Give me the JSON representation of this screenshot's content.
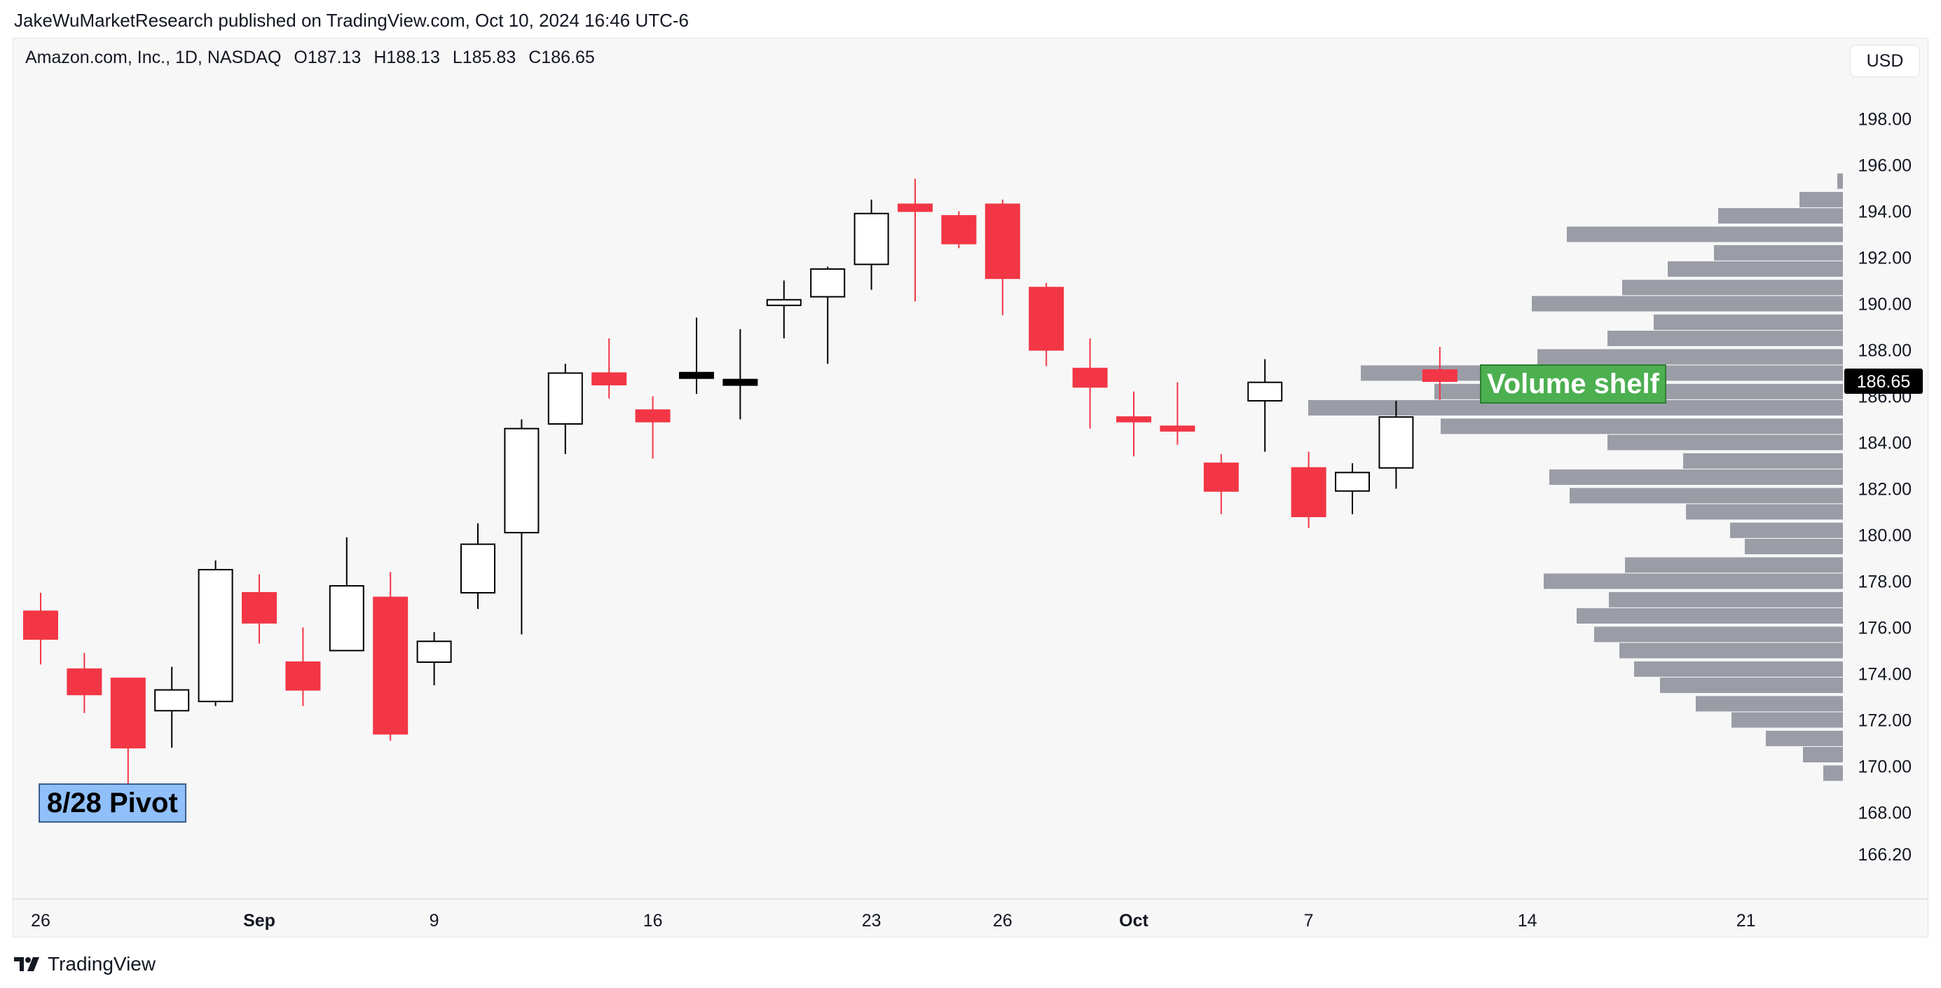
{
  "header": {
    "attribution": "JakeWuMarketResearch published on TradingView.com, Oct 10, 2024 16:46 UTC-6"
  },
  "legend": {
    "symbol": "Amazon.com, Inc., 1D, NASDAQ",
    "open": "O187.13",
    "high": "H188.13",
    "low": "L185.83",
    "close": "C186.65"
  },
  "currency": "USD",
  "footer": {
    "brand": "TradingView",
    "logo_icon": "tradingview-logo-icon"
  },
  "annotations": {
    "pivot": "8/28 Pivot",
    "volume_shelf": "Volume shelf"
  },
  "colors": {
    "down": "#f23645",
    "up_fill": "#ffffff",
    "up_border": "#000000",
    "volume_profile": "#9a9ca6",
    "last_price_bg": "#000000"
  },
  "chart_data": {
    "type": "candlestick",
    "ylim": [
      164.5,
      199.8
    ],
    "y_ticks": [
      "198.00",
      "196.00",
      "194.00",
      "192.00",
      "190.00",
      "188.00",
      "186.00",
      "184.00",
      "182.00",
      "180.00",
      "178.00",
      "176.00",
      "174.00",
      "172.00",
      "170.00",
      "168.00",
      "166.20"
    ],
    "x_ticks": [
      {
        "label": "26",
        "bar": 0,
        "bold": false
      },
      {
        "label": "Sep",
        "bar": 5,
        "bold": true
      },
      {
        "label": "9",
        "bar": 9,
        "bold": false
      },
      {
        "label": "16",
        "bar": 14,
        "bold": false
      },
      {
        "label": "23",
        "bar": 19,
        "bold": false
      },
      {
        "label": "26",
        "bar": 22,
        "bold": false
      },
      {
        "label": "Oct",
        "bar": 25,
        "bold": true
      },
      {
        "label": "7",
        "bar": 29,
        "bold": false
      },
      {
        "label": "14",
        "bar": 34,
        "bold": false
      },
      {
        "label": "21",
        "bar": 39,
        "bold": false
      }
    ],
    "last_price": "186.65",
    "candles": [
      {
        "o": 176.7,
        "h": 177.5,
        "l": 174.4,
        "c": 175.5
      },
      {
        "o": 174.2,
        "h": 174.9,
        "l": 172.3,
        "c": 173.1
      },
      {
        "o": 173.8,
        "h": 173.8,
        "l": 169.0,
        "c": 170.8
      },
      {
        "o": 172.4,
        "h": 174.3,
        "l": 170.8,
        "c": 173.3
      },
      {
        "o": 172.8,
        "h": 178.9,
        "l": 172.6,
        "c": 178.5
      },
      {
        "o": 177.5,
        "h": 178.3,
        "l": 175.3,
        "c": 176.2
      },
      {
        "o": 174.5,
        "h": 176.0,
        "l": 172.6,
        "c": 173.3
      },
      {
        "o": 175.0,
        "h": 179.9,
        "l": 175.0,
        "c": 177.8
      },
      {
        "o": 177.3,
        "h": 178.4,
        "l": 171.1,
        "c": 171.4
      },
      {
        "o": 174.5,
        "h": 175.8,
        "l": 173.5,
        "c": 175.4
      },
      {
        "o": 177.5,
        "h": 180.5,
        "l": 176.8,
        "c": 179.6
      },
      {
        "o": 180.1,
        "h": 185.0,
        "l": 175.7,
        "c": 184.6
      },
      {
        "o": 184.8,
        "h": 187.4,
        "l": 183.5,
        "c": 187.0
      },
      {
        "o": 187.0,
        "h": 188.5,
        "l": 185.9,
        "c": 186.5
      },
      {
        "o": 185.4,
        "h": 186.0,
        "l": 183.3,
        "c": 184.9
      },
      {
        "o": 186.9,
        "h": 189.4,
        "l": 186.1,
        "c": 186.9
      },
      {
        "o": 186.6,
        "h": 188.9,
        "l": 185.0,
        "c": 186.6
      },
      {
        "o": 190.0,
        "h": 191.0,
        "l": 188.5,
        "c": 190.1
      },
      {
        "o": 190.3,
        "h": 191.6,
        "l": 187.4,
        "c": 191.5
      },
      {
        "o": 191.7,
        "h": 194.5,
        "l": 190.6,
        "c": 193.9
      },
      {
        "o": 194.3,
        "h": 195.4,
        "l": 190.1,
        "c": 194.0
      },
      {
        "o": 193.8,
        "h": 194.0,
        "l": 192.4,
        "c": 192.6
      },
      {
        "o": 194.3,
        "h": 194.5,
        "l": 189.5,
        "c": 191.1
      },
      {
        "o": 190.7,
        "h": 190.9,
        "l": 187.3,
        "c": 188.0
      },
      {
        "o": 187.2,
        "h": 188.5,
        "l": 184.6,
        "c": 186.4
      },
      {
        "o": 185.1,
        "h": 186.2,
        "l": 183.4,
        "c": 184.9
      },
      {
        "o": 184.7,
        "h": 186.6,
        "l": 183.9,
        "c": 184.5
      },
      {
        "o": 183.1,
        "h": 183.5,
        "l": 180.9,
        "c": 181.9
      },
      {
        "o": 185.8,
        "h": 187.6,
        "l": 183.6,
        "c": 186.6
      },
      {
        "o": 182.9,
        "h": 183.6,
        "l": 180.3,
        "c": 180.8
      },
      {
        "o": 181.9,
        "h": 183.1,
        "l": 180.9,
        "c": 182.7
      },
      {
        "o": 182.9,
        "h": 185.8,
        "l": 182.0,
        "c": 185.1
      },
      {
        "o": 187.13,
        "h": 188.13,
        "l": 185.83,
        "c": 186.65
      }
    ],
    "volume_profile": [
      {
        "price": 195.3,
        "vol": 8
      },
      {
        "price": 194.5,
        "vol": 62
      },
      {
        "price": 193.8,
        "vol": 178
      },
      {
        "price": 193.0,
        "vol": 394
      },
      {
        "price": 192.2,
        "vol": 184
      },
      {
        "price": 191.5,
        "vol": 250
      },
      {
        "price": 190.7,
        "vol": 315
      },
      {
        "price": 190.0,
        "vol": 444
      },
      {
        "price": 189.2,
        "vol": 270
      },
      {
        "price": 188.5,
        "vol": 336
      },
      {
        "price": 187.7,
        "vol": 436
      },
      {
        "price": 187.0,
        "vol": 688
      },
      {
        "price": 186.2,
        "vol": 583
      },
      {
        "price": 185.5,
        "vol": 763
      },
      {
        "price": 184.7,
        "vol": 574
      },
      {
        "price": 184.0,
        "vol": 336
      },
      {
        "price": 183.2,
        "vol": 228
      },
      {
        "price": 182.5,
        "vol": 419
      },
      {
        "price": 181.7,
        "vol": 390
      },
      {
        "price": 181.0,
        "vol": 224
      },
      {
        "price": 180.2,
        "vol": 161
      },
      {
        "price": 179.5,
        "vol": 140
      },
      {
        "price": 178.7,
        "vol": 311
      },
      {
        "price": 178.0,
        "vol": 427
      },
      {
        "price": 177.2,
        "vol": 334
      },
      {
        "price": 176.5,
        "vol": 380
      },
      {
        "price": 175.7,
        "vol": 355
      },
      {
        "price": 175.0,
        "vol": 319
      },
      {
        "price": 174.2,
        "vol": 298
      },
      {
        "price": 173.5,
        "vol": 261
      },
      {
        "price": 172.7,
        "vol": 210
      },
      {
        "price": 172.0,
        "vol": 159
      },
      {
        "price": 171.2,
        "vol": 110
      },
      {
        "price": 170.5,
        "vol": 57
      },
      {
        "price": 169.7,
        "vol": 28
      }
    ]
  }
}
